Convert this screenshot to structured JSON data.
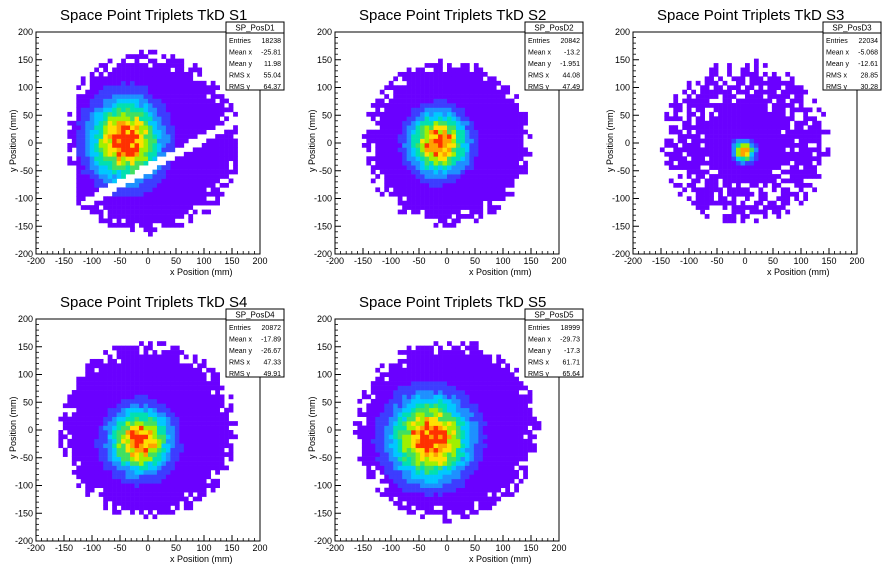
{
  "chart_data": [
    {
      "type": "heatmap",
      "title": "Space Point Triplets TkD S1",
      "xlabel": "x Position (mm)",
      "ylabel": "y Position (mm)",
      "xlim": [
        -200,
        200
      ],
      "ylim": [
        -200,
        200
      ],
      "xticks": [
        "-200",
        "-150",
        "-100",
        "-50",
        "0",
        "50",
        "100",
        "150",
        "200"
      ],
      "yticks": [
        "-200",
        "-150",
        "-100",
        "-50",
        "0",
        "50",
        "100",
        "150",
        "200"
      ],
      "stats": {
        "name": "SP_PosD1",
        "rows": [
          {
            "label": "Entries",
            "value": "18238"
          },
          {
            "label": "Mean x",
            "value": "-25.81"
          },
          {
            "label": "Mean y",
            "value": "11.98"
          },
          {
            "label": "RMS x",
            "value": "55.04"
          },
          {
            "label": "RMS y",
            "value": "64.37"
          }
        ]
      },
      "distribution": {
        "mean_x": -25.81,
        "mean_y": 11.98,
        "rms_x": 55.04,
        "rms_y": 64.37,
        "radius": 165,
        "peak_x": -40,
        "peak_y": 5,
        "left_cut": -125,
        "gap_band": [
          -55,
          -35
        ],
        "gap_slope": 0.55
      }
    },
    {
      "type": "heatmap",
      "title": "Space Point Triplets TkD S2",
      "xlabel": "x Position (mm)",
      "ylabel": "y Position (mm)",
      "xlim": [
        -200,
        200
      ],
      "ylim": [
        -200,
        200
      ],
      "xticks": [
        "-200",
        "-150",
        "-100",
        "-50",
        "0",
        "50",
        "100",
        "150",
        "200"
      ],
      "yticks": [
        "-200",
        "-150",
        "-100",
        "-50",
        "0",
        "50",
        "100",
        "150",
        "200"
      ],
      "stats": {
        "name": "SP_PosD2",
        "rows": [
          {
            "label": "Entries",
            "value": "20842"
          },
          {
            "label": "Mean x",
            "value": "-13.2"
          },
          {
            "label": "Mean y",
            "value": "-1.951"
          },
          {
            "label": "RMS x",
            "value": "44.08"
          },
          {
            "label": "RMS y",
            "value": "47.49"
          }
        ]
      },
      "distribution": {
        "mean_x": -13.2,
        "mean_y": -1.951,
        "rms_x": 44.08,
        "rms_y": 47.49,
        "radius": 150,
        "peak_x": -15,
        "peak_y": 0
      }
    },
    {
      "type": "heatmap",
      "title": "Space Point Triplets TkD S3",
      "xlabel": "x Position (mm)",
      "ylabel": "y Position (mm)",
      "xlim": [
        -200,
        200
      ],
      "ylim": [
        -200,
        200
      ],
      "xticks": [
        "-200",
        "-150",
        "-100",
        "-50",
        "0",
        "50",
        "100",
        "150",
        "200"
      ],
      "yticks": [
        "-200",
        "-150",
        "-100",
        "-50",
        "0",
        "50",
        "100",
        "150",
        "200"
      ],
      "stats": {
        "name": "SP_PosD3",
        "rows": [
          {
            "label": "Entries",
            "value": "22034"
          },
          {
            "label": "Mean x",
            "value": "-5.068"
          },
          {
            "label": "Mean y",
            "value": "-12.61"
          },
          {
            "label": "RMS x",
            "value": "28.85"
          },
          {
            "label": "RMS y",
            "value": "30.28"
          }
        ]
      },
      "distribution": {
        "mean_x": -5.068,
        "mean_y": -12.61,
        "rms_x": 28.85,
        "rms_y": 30.28,
        "radius": 150,
        "peak_x": -2,
        "peak_y": -15
      }
    },
    {
      "type": "heatmap",
      "title": "Space Point Triplets TkD S4",
      "xlabel": "x Position (mm)",
      "ylabel": "y Position (mm)",
      "xlim": [
        -200,
        200
      ],
      "ylim": [
        -200,
        200
      ],
      "xticks": [
        "-200",
        "-150",
        "-100",
        "-50",
        "0",
        "50",
        "100",
        "150",
        "200"
      ],
      "yticks": [
        "-200",
        "-150",
        "-100",
        "-50",
        "0",
        "50",
        "100",
        "150",
        "200"
      ],
      "stats": {
        "name": "SP_PosD4",
        "rows": [
          {
            "label": "Entries",
            "value": "20872"
          },
          {
            "label": "Mean x",
            "value": "-17.89"
          },
          {
            "label": "Mean y",
            "value": "-26.67"
          },
          {
            "label": "RMS x",
            "value": "47.33"
          },
          {
            "label": "RMS y",
            "value": "49.91"
          }
        ]
      },
      "distribution": {
        "mean_x": -17.89,
        "mean_y": -26.67,
        "rms_x": 47.33,
        "rms_y": 49.91,
        "radius": 160,
        "peak_x": -15,
        "peak_y": -20
      }
    },
    {
      "type": "heatmap",
      "title": "Space Point Triplets TkD S5",
      "xlabel": "x Position (mm)",
      "ylabel": "y Position (mm)",
      "xlim": [
        -200,
        200
      ],
      "ylim": [
        -200,
        200
      ],
      "xticks": [
        "-200",
        "-150",
        "-100",
        "-50",
        "0",
        "50",
        "100",
        "150",
        "200"
      ],
      "yticks": [
        "-200",
        "-150",
        "-100",
        "-50",
        "0",
        "50",
        "100",
        "150",
        "200"
      ],
      "stats": {
        "name": "SP_PosD5",
        "rows": [
          {
            "label": "Entries",
            "value": "18999"
          },
          {
            "label": "Mean x",
            "value": "-29.73"
          },
          {
            "label": "Mean y",
            "value": "-17.3"
          },
          {
            "label": "RMS x",
            "value": "61.71"
          },
          {
            "label": "RMS y",
            "value": "65.64"
          }
        ]
      },
      "distribution": {
        "mean_x": -29.73,
        "mean_y": -17.3,
        "rms_x": 61.71,
        "rms_y": 65.64,
        "radius": 165,
        "peak_x": -30,
        "peak_y": -15
      }
    }
  ],
  "palette": [
    "#6a00ff",
    "#3d3dff",
    "#1e90ff",
    "#00c8ff",
    "#00e0b0",
    "#40e060",
    "#a0f000",
    "#ffe000",
    "#ffa000",
    "#ff3000"
  ]
}
